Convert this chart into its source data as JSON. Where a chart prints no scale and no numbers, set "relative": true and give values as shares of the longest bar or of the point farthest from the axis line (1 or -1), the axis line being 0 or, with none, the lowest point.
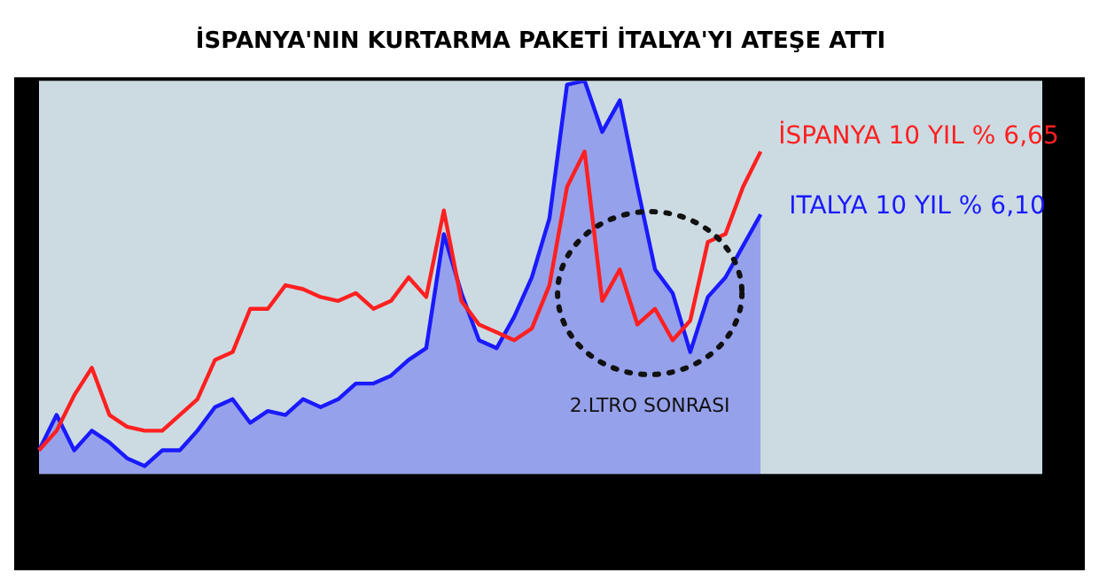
{
  "chart_data": {
    "type": "line",
    "title": "İSPANYA'NIN KURTARMA PAKETİ İTALYA'YI ATEŞE ATTI",
    "relative": true,
    "legend": false,
    "marker": "none",
    "categories": [
      null,
      null,
      null,
      null,
      null,
      null,
      null,
      null,
      null,
      null,
      null,
      null,
      null,
      null,
      null,
      null,
      null,
      null,
      null,
      null,
      null,
      null,
      null,
      null,
      null,
      null,
      null,
      null,
      null,
      null,
      null,
      null,
      null,
      null,
      null,
      null,
      null,
      null,
      null,
      null,
      null,
      null,
      null,
      null,
      null,
      null,
      null,
      null,
      null,
      null,
      null,
      null,
      null,
      null,
      null,
      null,
      null,
      null
    ],
    "series": [
      {
        "name": "İSPANYA 10 YIL % 6,65",
        "color": "#ff2020",
        "values": [
          0.06,
          0.11,
          0.2,
          0.27,
          0.15,
          0.12,
          0.11,
          0.11,
          0.15,
          0.19,
          0.29,
          0.31,
          0.42,
          0.42,
          0.48,
          0.47,
          0.45,
          0.44,
          0.46,
          0.42,
          0.44,
          0.5,
          0.45,
          0.67,
          0.44,
          0.38,
          0.36,
          0.34,
          0.37,
          0.48,
          0.73,
          0.82,
          0.44,
          0.52,
          0.38,
          0.42,
          0.34,
          0.39,
          0.59,
          0.61,
          0.73,
          0.82,
          null,
          null,
          null,
          null,
          null,
          null,
          null,
          null,
          null,
          null,
          null,
          null,
          null,
          null,
          null,
          null
        ]
      },
      {
        "name": "ITALYA 10 YIL % 6,10",
        "type": "area",
        "color": "#1a1aff",
        "values": [
          0.06,
          0.15,
          0.06,
          0.11,
          0.08,
          0.04,
          0.02,
          0.06,
          0.06,
          0.11,
          0.17,
          0.19,
          0.13,
          0.16,
          0.15,
          0.19,
          0.17,
          0.19,
          0.23,
          0.23,
          0.25,
          0.29,
          0.32,
          0.61,
          0.46,
          0.34,
          0.32,
          0.4,
          0.5,
          0.65,
          0.99,
          1,
          0.87,
          0.95,
          0.73,
          0.52,
          0.46,
          0.31,
          0.45,
          0.5,
          0.58,
          0.66,
          null,
          null,
          null,
          null,
          null,
          null,
          null,
          null,
          null,
          null,
          null,
          null,
          null,
          null,
          null,
          null
        ]
      }
    ],
    "annotations": [
      "2.LTRO SONRASI"
    ]
  }
}
